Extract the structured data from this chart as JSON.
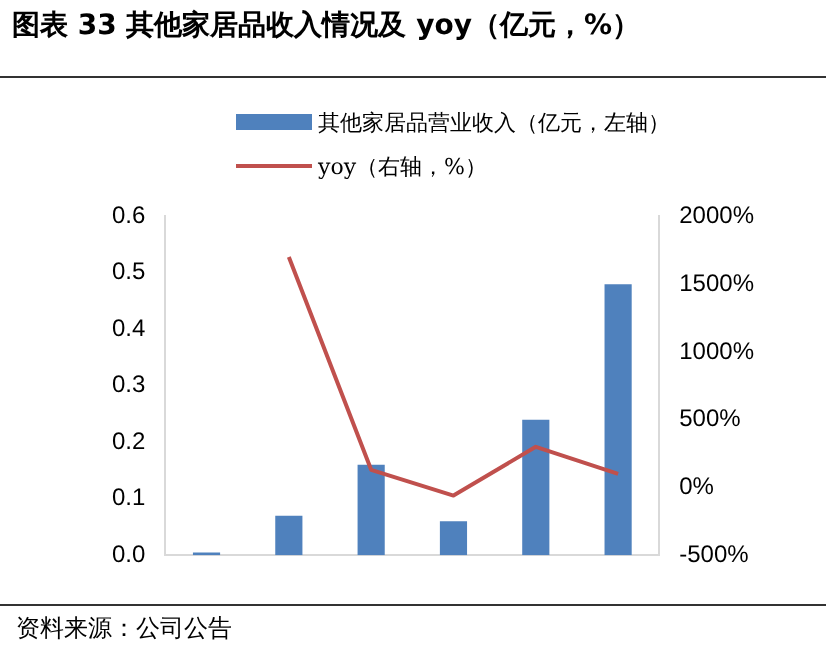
{
  "chart_data": {
    "type": "bar",
    "title": "图表 33  其他家居品收入情况及 yoy（亿元，%）",
    "categories": [
      null,
      null,
      null,
      null,
      null,
      null
    ],
    "series": [
      {
        "name": "其他家居品营业收入（亿元，左轴）",
        "color": "#4f81bd",
        "values": [
          0.005,
          0.07,
          0.16,
          0.06,
          0.24,
          0.48
        ]
      },
      {
        "name": "yoy（右轴，%）",
        "type": "line",
        "axis": "y2",
        "color": "#c0504d",
        "values": [
          null,
          1700,
          130,
          -60,
          300,
          100
        ]
      }
    ],
    "ylim": [
      0,
      0.6
    ],
    "yticks": [
      {
        "value": 0,
        "label": "0.0"
      },
      {
        "value": 0.1,
        "label": "0.1"
      },
      {
        "value": 0.2,
        "label": "0.2"
      },
      {
        "value": 0.3,
        "label": "0.3"
      },
      {
        "value": 0.4,
        "label": "0.4"
      },
      {
        "value": 0.5,
        "label": "0.5"
      },
      {
        "value": 0.6,
        "label": "0.6"
      }
    ],
    "y2lim": [
      -500,
      2000
    ],
    "y2ticks": [
      {
        "value": -500,
        "label": "-500%"
      },
      {
        "value": 0,
        "label": "0%"
      },
      {
        "value": 500,
        "label": "500%"
      },
      {
        "value": 1000,
        "label": "1000%"
      },
      {
        "value": 1500,
        "label": "1500%"
      },
      {
        "value": 2000,
        "label": "2000%"
      }
    ],
    "grid": false,
    "legend": "top",
    "marker": "none",
    "annotations": [
      "资料来源：公司公告"
    ]
  }
}
